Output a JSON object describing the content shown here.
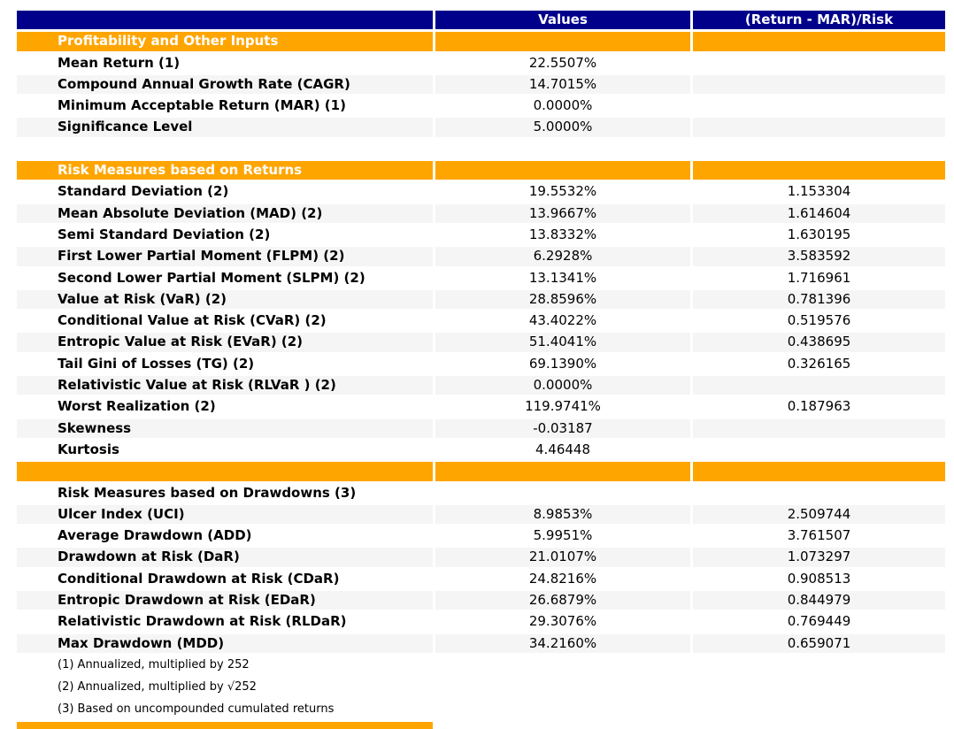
{
  "table": {
    "columns": [
      "",
      "Values",
      "(Return - MAR)/Risk"
    ],
    "colors": {
      "header_bg": "#00008B",
      "header_text": "#FFFFFF",
      "section_bg": "#FFA500",
      "section_text": "#FFFFFF",
      "stripe_bg": "#F5F5F5",
      "body_text": "#000000"
    },
    "rows": [
      {
        "type": "columns"
      },
      {
        "type": "section",
        "label": "Profitability and Other Inputs"
      },
      {
        "type": "data",
        "label": "Mean Return (1)",
        "value": "22.5507%",
        "ratio": "",
        "shade": false
      },
      {
        "type": "data",
        "label": "Compound Annual Growth Rate (CAGR)",
        "value": "14.7015%",
        "ratio": "",
        "shade": true
      },
      {
        "type": "data",
        "label": "Minimum Acceptable Return (MAR) (1)",
        "value": "0.0000%",
        "ratio": "",
        "shade": false
      },
      {
        "type": "data",
        "label": "Significance Level",
        "value": "5.0000%",
        "ratio": "",
        "shade": true
      },
      {
        "type": "blank"
      },
      {
        "type": "section",
        "label": "Risk Measures based on Returns"
      },
      {
        "type": "data",
        "label": "Standard Deviation (2)",
        "value": "19.5532%",
        "ratio": "1.153304",
        "shade": false
      },
      {
        "type": "data",
        "label": "Mean Absolute Deviation (MAD) (2)",
        "value": "13.9667%",
        "ratio": "1.614604",
        "shade": true
      },
      {
        "type": "data",
        "label": "Semi Standard Deviation (2)",
        "value": "13.8332%",
        "ratio": "1.630195",
        "shade": false
      },
      {
        "type": "data",
        "label": "First Lower Partial Moment (FLPM) (2)",
        "value": "6.2928%",
        "ratio": "3.583592",
        "shade": true
      },
      {
        "type": "data",
        "label": "Second Lower Partial Moment (SLPM) (2)",
        "value": "13.1341%",
        "ratio": "1.716961",
        "shade": false
      },
      {
        "type": "data",
        "label": "Value at Risk (VaR) (2)",
        "value": "28.8596%",
        "ratio": "0.781396",
        "shade": true
      },
      {
        "type": "data",
        "label": "Conditional Value at Risk (CVaR) (2)",
        "value": "43.4022%",
        "ratio": "0.519576",
        "shade": false
      },
      {
        "type": "data",
        "label": "Entropic Value at Risk (EVaR) (2)",
        "value": "51.4041%",
        "ratio": "0.438695",
        "shade": true
      },
      {
        "type": "data",
        "label": "Tail Gini of Losses (TG) (2)",
        "value": "69.1390%",
        "ratio": "0.326165",
        "shade": false
      },
      {
        "type": "data",
        "label": "Relativistic Value at Risk (RLVaR ) (2)",
        "value": "0.0000%",
        "ratio": "",
        "shade": true
      },
      {
        "type": "data",
        "label": "Worst Realization (2)",
        "value": "119.9741%",
        "ratio": "0.187963",
        "shade": false
      },
      {
        "type": "data",
        "label": "Skewness",
        "value": "-0.03187",
        "ratio": "",
        "shade": true
      },
      {
        "type": "data",
        "label": "Kurtosis",
        "value": "4.46448",
        "ratio": "",
        "shade": false
      },
      {
        "type": "section_empty"
      },
      {
        "type": "subheader",
        "label": "Risk Measures based on Drawdowns (3)"
      },
      {
        "type": "data",
        "label": "Ulcer Index (UCI)",
        "value": "8.9853%",
        "ratio": "2.509744",
        "shade": true
      },
      {
        "type": "data",
        "label": "Average Drawdown (ADD)",
        "value": "5.9951%",
        "ratio": "3.761507",
        "shade": false
      },
      {
        "type": "data",
        "label": "Drawdown at Risk (DaR)",
        "value": "21.0107%",
        "ratio": "1.073297",
        "shade": true
      },
      {
        "type": "data",
        "label": "Conditional Drawdown at Risk (CDaR)",
        "value": "24.8216%",
        "ratio": "0.908513",
        "shade": false
      },
      {
        "type": "data",
        "label": "Entropic Drawdown at Risk (EDaR)",
        "value": "26.6879%",
        "ratio": "0.844979",
        "shade": true
      },
      {
        "type": "data",
        "label": "Relativistic Drawdown at Risk (RLDaR)",
        "value": "29.3076%",
        "ratio": "0.769449",
        "shade": false
      },
      {
        "type": "data",
        "label": "Max Drawdown (MDD)",
        "value": "34.2160%",
        "ratio": "0.659071",
        "shade": true
      },
      {
        "type": "footnote",
        "label": "(1) Annualized, multiplied by 252"
      },
      {
        "type": "footnote",
        "label": "(2) Annualized, multiplied by √252"
      },
      {
        "type": "footnote",
        "label": "(3) Based on uncompounded cumulated returns"
      },
      {
        "type": "section_cut"
      }
    ]
  }
}
